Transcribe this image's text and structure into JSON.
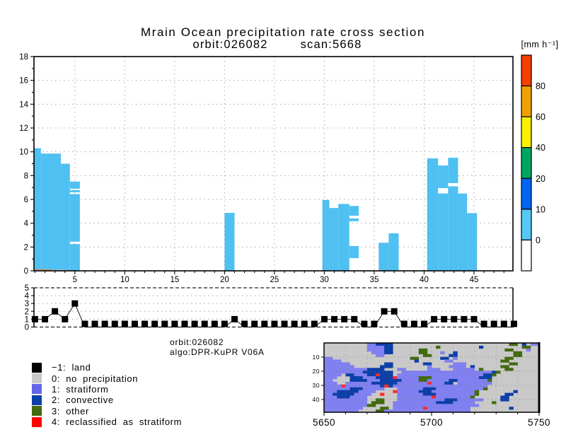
{
  "header": {
    "title": "Mrain Ocean precipitation rate cross section",
    "subtitle_orbit": "orbit:026082",
    "subtitle_scan": "scan:5668"
  },
  "colorbar": {
    "unit_label": "[mm h⁻¹]",
    "tick_labels": [
      "80",
      "60",
      "40",
      "20",
      "10",
      "0"
    ],
    "colors_top_to_bottom": [
      "#f54000",
      "#f2a200",
      "#faf000",
      "#00a65f",
      "#0066f2",
      "#55c8f5",
      "#ffffff"
    ]
  },
  "info_block": {
    "orbit": "orbit:026082",
    "algo": "algo:DPR-KuPR V06A"
  },
  "legend": {
    "items": [
      {
        "label": "−1: land",
        "color": "#000000"
      },
      {
        "label": "0: no precipitation",
        "color": "#c9c9c9"
      },
      {
        "label": "1: stratiform",
        "color": "#6565e8"
      },
      {
        "label": "2: convective",
        "color": "#0d3fa8"
      },
      {
        "label": "3: other",
        "color": "#426b10"
      },
      {
        "label": "4: reclassified as stratiform",
        "color": "#ff0000"
      }
    ]
  },
  "chart_data": [
    {
      "id": "cross_section",
      "type": "area",
      "title": "Mrain Ocean precipitation rate cross section",
      "xlabel": "",
      "ylabel": "",
      "xlim": [
        0.9,
        48.9
      ],
      "ylim": [
        0,
        18
      ],
      "x_ticks": [
        5,
        10,
        15,
        20,
        25,
        30,
        35,
        40,
        45
      ],
      "y_ticks": [
        0,
        2,
        4,
        6,
        8,
        10,
        12,
        14,
        16,
        18
      ],
      "grid": "dotted",
      "fill_color": "#4fc0f2",
      "rects": [
        [
          0.92,
          1.6,
          0,
          10.3
        ],
        [
          1.6,
          3.6,
          0,
          9.85
        ],
        [
          3.6,
          4.5,
          0,
          9.0
        ],
        [
          4.5,
          5.5,
          6.9,
          7.5
        ],
        [
          4.5,
          5.5,
          6.6,
          6.78
        ],
        [
          4.5,
          5.5,
          2.45,
          6.45
        ],
        [
          4.5,
          5.5,
          0,
          2.25
        ],
        [
          20.0,
          21.0,
          0,
          4.87
        ],
        [
          29.8,
          30.5,
          0,
          5.95
        ],
        [
          30.5,
          31.4,
          0,
          5.28
        ],
        [
          31.4,
          32.5,
          0,
          5.62
        ],
        [
          32.5,
          33.45,
          4.63,
          5.45
        ],
        [
          32.5,
          33.45,
          4.17,
          4.4
        ],
        [
          32.5,
          33.45,
          1.07,
          2.08
        ],
        [
          35.45,
          36.45,
          0,
          2.36
        ],
        [
          36.45,
          37.45,
          0,
          3.15
        ],
        [
          40.3,
          41.4,
          0,
          9.45
        ],
        [
          41.4,
          42.4,
          6.95,
          8.85
        ],
        [
          41.4,
          42.4,
          0,
          6.5
        ],
        [
          42.4,
          43.4,
          7.37,
          9.5
        ],
        [
          42.4,
          43.4,
          0,
          7.1
        ],
        [
          43.4,
          44.3,
          0,
          6.5
        ],
        [
          44.3,
          45.3,
          0,
          4.85
        ]
      ],
      "surface_marks": [
        {
          "x1": 1.0,
          "x2": 2.6,
          "y1": 0.02,
          "y2": 0.14,
          "color": "#c59a6a"
        },
        {
          "x1": 2.6,
          "x2": 4.3,
          "y1": 0.02,
          "y2": 0.1,
          "color": "#b9b9b9"
        }
      ]
    },
    {
      "id": "rain_type",
      "type": "line",
      "x_start": 1,
      "values": [
        1,
        1,
        2,
        1,
        3,
        0,
        0,
        0,
        0,
        0,
        0,
        0,
        0,
        0,
        0,
        0,
        0,
        0,
        0,
        0,
        1,
        0,
        0,
        0,
        0,
        0,
        0,
        0,
        0,
        1,
        1,
        1,
        1,
        0,
        0,
        2,
        2,
        0,
        0,
        0,
        1,
        1,
        1,
        1,
        1,
        0,
        0,
        0,
        0
      ],
      "ylim": [
        0,
        5
      ],
      "y_ticks": [
        0,
        1,
        2,
        3,
        4,
        5
      ],
      "marker": "square",
      "marker_color": "#000000"
    },
    {
      "id": "classification_map",
      "type": "heatmap",
      "x_range": [
        5650,
        5750
      ],
      "x_ticks": [
        5650,
        5700,
        5750
      ],
      "y_ticks": [
        10,
        20,
        30,
        40
      ],
      "n_scans": 100,
      "n_rays": 49,
      "palette": {
        ".": "#c9c9c9",
        "s": "#8080f0",
        "c": "#0d3fa8",
        "o": "#426b10",
        "r": "#ff2a2a",
        "k": "#000000"
      },
      "rows": [
        "..........sscccc...........................oo.c.ss",
        "..........sssscc..........o.........c.........oo..ss",
        "..........sssscc......oo..................oo...s",
        "...........ssscc......oo...s..c.............oo....",
        "............ss.........oo....cc.............oo....",
        "ss..................oo.....cc.s...........oo.....",
        "ssss.................c......ss...........oo.....",
        "ssssss........cc.......cc.....sss..........oo.....",
        "sssssss......ccc........s....ssss.c......oo......",
        "sssssssssscccc...ss.....sss...sssss.o.....oo......",
        "sssssssssccccccc..sssssssssssssssssssssco..........",
        "ssss.ccsssccrccc.sssssssssssssssssssscco...........",
        "sss...cccsssccccrsssssooosssssssssssccc...........",
        "ss....ccccssscccccssssoosssssccssssssso...........",
        "sss..ssssssccccccsssssssrssscc ssssssss...........",
        "ssssrsssssssscrcssssssssssssssssssssss...........",
        "sssssscccsssss...sssssscccssssssssssso...........",
        "ssscccccssss....rssssscccsssssssssso........c...",
        "sscccccssss..r...sssssscccssssssssso......cc....",
        "ssscccssss.......ssssssssrsssssssso......cc....",
        "ssssssssss..oo...ssssssssssscccssssss....cc.....",
        "ssssssssss.ooo..ssssssssssccccsssss....o......",
        "ssssssssssoo....ssssssssssssssssssss..............",
        "sssssssss....oo.sssssssrssssssssss.........c...",
        "ssssssss....oossssssssssssssssssss..............."
      ]
    }
  ]
}
